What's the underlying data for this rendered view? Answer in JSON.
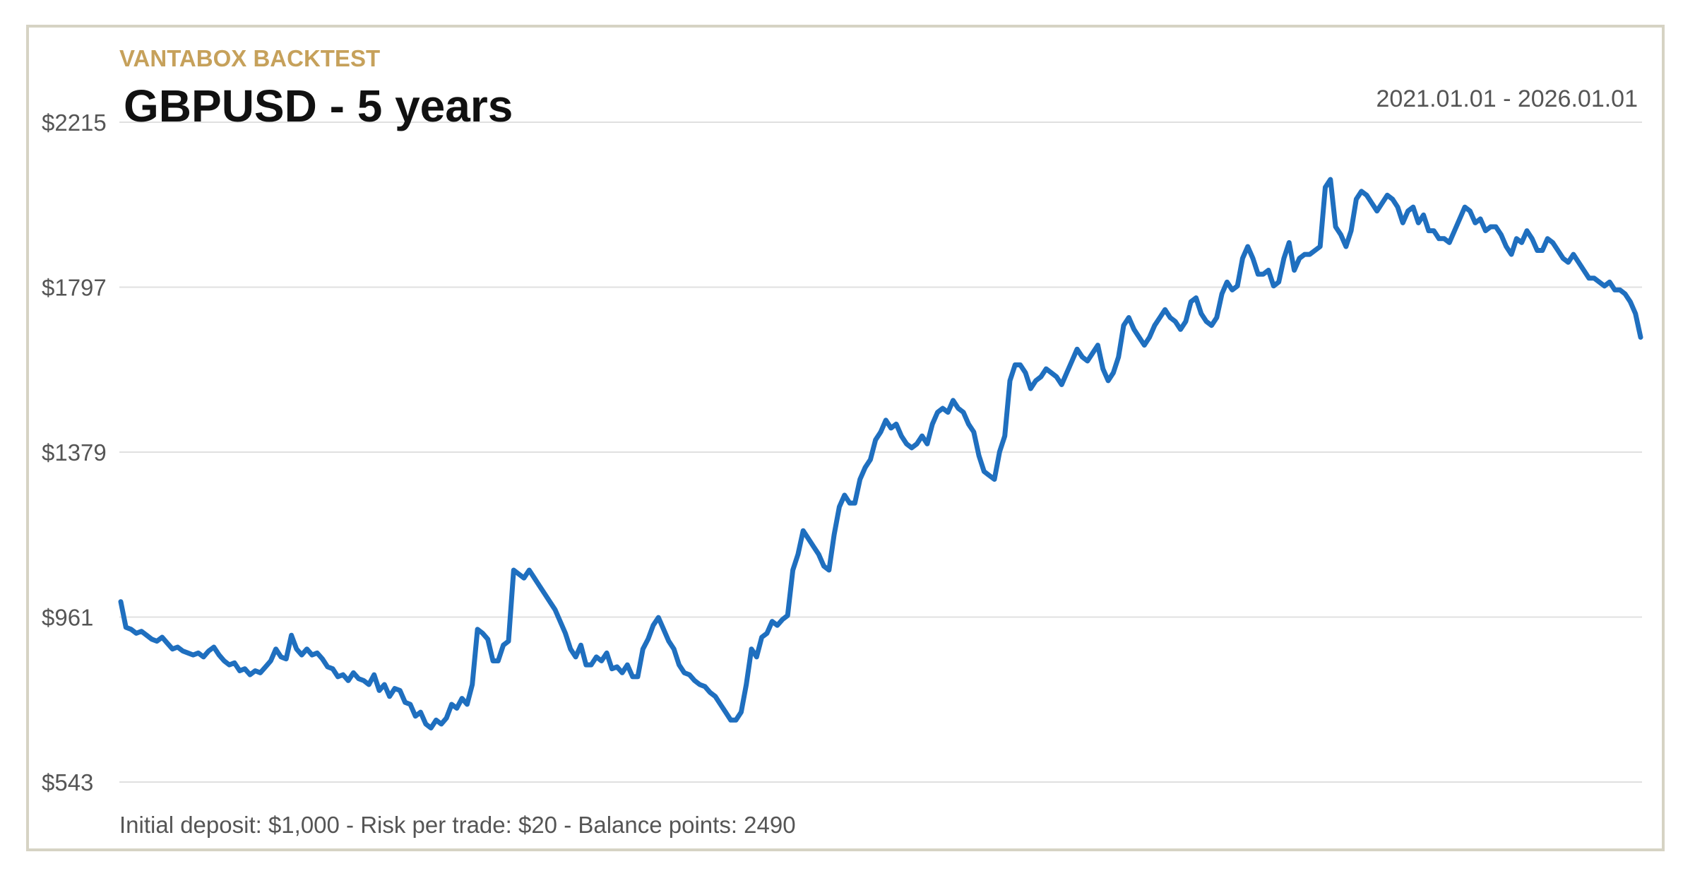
{
  "header": {
    "brand": "VANTABOX BACKTEST",
    "title": "GBPUSD - 5 years",
    "date_range": "2021.01.01 - 2026.01.01"
  },
  "footer": {
    "note": "Initial deposit: $1,000 - Risk per trade: $20 - Balance points: 2490"
  },
  "colors": {
    "brand": "#c6a15b",
    "line": "#1f6fbf",
    "grid": "#e0e0e0",
    "frame": "#d6d3c4",
    "axis_text": "#555555",
    "title": "#111111"
  },
  "chart_data": {
    "type": "line",
    "x_range": [
      "2021.01.01",
      "2026.01.01"
    ],
    "ylim": [
      543,
      2215
    ],
    "y_ticks": [
      543,
      961,
      1379,
      1797,
      2215
    ],
    "y_tick_labels": [
      "$543",
      "$961",
      "$1379",
      "$1797",
      "$2215"
    ],
    "grid": true,
    "points_total": 2490,
    "series": [
      {
        "values": [
          1000,
          935,
          930,
          920,
          925,
          915,
          905,
          900,
          910,
          895,
          880,
          885,
          875,
          870,
          865,
          870,
          860,
          875,
          885,
          865,
          850,
          840,
          845,
          825,
          830,
          815,
          825,
          820,
          835,
          850,
          880,
          860,
          855,
          915,
          880,
          865,
          880,
          865,
          870,
          855,
          835,
          830,
          810,
          815,
          800,
          820,
          805,
          800,
          790,
          815,
          775,
          790,
          760,
          780,
          775,
          745,
          740,
          710,
          720,
          690,
          680,
          700,
          690,
          705,
          740,
          730,
          755,
          740,
          790,
          930,
          920,
          905,
          850,
          850,
          890,
          900,
          1080,
          1070,
          1060,
          1080,
          1060,
          1040,
          1020,
          1000,
          980,
          950,
          920,
          880,
          860,
          890,
          840,
          840,
          860,
          850,
          870,
          830,
          835,
          820,
          840,
          810,
          810,
          880,
          905,
          940,
          960,
          930,
          900,
          880,
          840,
          820,
          815,
          800,
          790,
          785,
          770,
          760,
          740,
          720,
          700,
          700,
          720,
          790,
          880,
          860,
          910,
          920,
          950,
          940,
          955,
          965,
          1080,
          1120,
          1180,
          1160,
          1140,
          1120,
          1090,
          1080,
          1170,
          1240,
          1270,
          1250,
          1250,
          1310,
          1340,
          1360,
          1410,
          1430,
          1460,
          1440,
          1450,
          1420,
          1400,
          1390,
          1400,
          1420,
          1400,
          1450,
          1480,
          1490,
          1480,
          1510,
          1490,
          1480,
          1450,
          1430,
          1370,
          1330,
          1320,
          1310,
          1380,
          1420,
          1560,
          1600,
          1600,
          1580,
          1540,
          1560,
          1570,
          1590,
          1580,
          1570,
          1550,
          1580,
          1610,
          1640,
          1620,
          1610,
          1630,
          1650,
          1590,
          1560,
          1580,
          1620,
          1700,
          1720,
          1690,
          1670,
          1650,
          1670,
          1700,
          1720,
          1740,
          1720,
          1710,
          1690,
          1710,
          1760,
          1770,
          1730,
          1710,
          1700,
          1720,
          1780,
          1810,
          1790,
          1800,
          1870,
          1900,
          1870,
          1830,
          1830,
          1840,
          1800,
          1810,
          1870,
          1910,
          1840,
          1870,
          1880,
          1880,
          1890,
          1900,
          2050,
          2070,
          1950,
          1930,
          1900,
          1940,
          2020,
          2040,
          2030,
          2010,
          1990,
          2010,
          2030,
          2020,
          2000,
          1960,
          1990,
          2000,
          1960,
          1980,
          1940,
          1940,
          1920,
          1920,
          1910,
          1940,
          1970,
          2000,
          1990,
          1960,
          1970,
          1940,
          1950,
          1950,
          1930,
          1900,
          1880,
          1920,
          1910,
          1940,
          1920,
          1890,
          1890,
          1920,
          1910,
          1890,
          1870,
          1860,
          1880,
          1860,
          1840,
          1820,
          1820,
          1810,
          1800,
          1810,
          1790,
          1790,
          1780,
          1760,
          1730,
          1670
        ]
      }
    ]
  }
}
